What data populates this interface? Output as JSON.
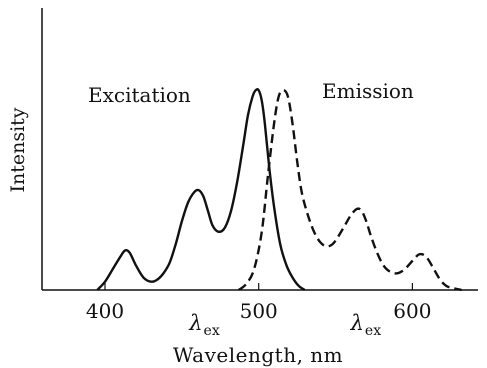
{
  "chart_data": {
    "type": "line",
    "title": "",
    "xlabel": "Wavelength, nm",
    "ylabel": "Intensity",
    "xlim": [
      360,
      655
    ],
    "ylim": [
      0,
      1.0
    ],
    "xticks": [
      400,
      500,
      600
    ],
    "tick_labels": [
      "400",
      "500",
      "600"
    ],
    "grid": false,
    "annotations": [
      {
        "text": "Excitation",
        "near_series": "Excitation"
      },
      {
        "text": "Emission",
        "near_series": "Emission"
      }
    ],
    "lambda_marks": [
      {
        "symbol": "λ",
        "subscript": "ex",
        "x": 460
      },
      {
        "symbol": "λ",
        "subscript": "ex",
        "x": 565
      }
    ],
    "series": [
      {
        "name": "Excitation",
        "style": "solid",
        "color": "#111111",
        "x": [
          395,
          400,
          405,
          410,
          413,
          416,
          420,
          425,
          430,
          434,
          438,
          442,
          446,
          450,
          454,
          458,
          461,
          464,
          467,
          470,
          474,
          478,
          482,
          486,
          490,
          493,
          496,
          498,
          500,
          502,
          504,
          507,
          510,
          514,
          518,
          522,
          526,
          530
        ],
        "y": [
          0.0,
          0.04,
          0.1,
          0.16,
          0.19,
          0.18,
          0.12,
          0.06,
          0.04,
          0.05,
          0.08,
          0.13,
          0.22,
          0.33,
          0.42,
          0.47,
          0.48,
          0.45,
          0.38,
          0.31,
          0.28,
          0.3,
          0.38,
          0.52,
          0.7,
          0.84,
          0.93,
          0.96,
          0.96,
          0.91,
          0.8,
          0.58,
          0.4,
          0.22,
          0.12,
          0.06,
          0.02,
          0.0
        ]
      },
      {
        "name": "Emission",
        "style": "dashed",
        "color": "#111111",
        "x": [
          487,
          492,
          497,
          502,
          506,
          510,
          513,
          516,
          519,
          522,
          525,
          528,
          532,
          536,
          540,
          544,
          548,
          552,
          556,
          560,
          564,
          567,
          570,
          573,
          577,
          581,
          585,
          590,
          595,
          600,
          604,
          607,
          610,
          614,
          618,
          622,
          626,
          632
        ],
        "y": [
          0.0,
          0.03,
          0.1,
          0.28,
          0.55,
          0.8,
          0.93,
          0.96,
          0.93,
          0.8,
          0.62,
          0.47,
          0.36,
          0.28,
          0.23,
          0.21,
          0.22,
          0.26,
          0.31,
          0.36,
          0.39,
          0.38,
          0.33,
          0.26,
          0.18,
          0.12,
          0.09,
          0.08,
          0.1,
          0.14,
          0.17,
          0.17,
          0.15,
          0.1,
          0.05,
          0.02,
          0.01,
          0.0
        ]
      }
    ]
  }
}
